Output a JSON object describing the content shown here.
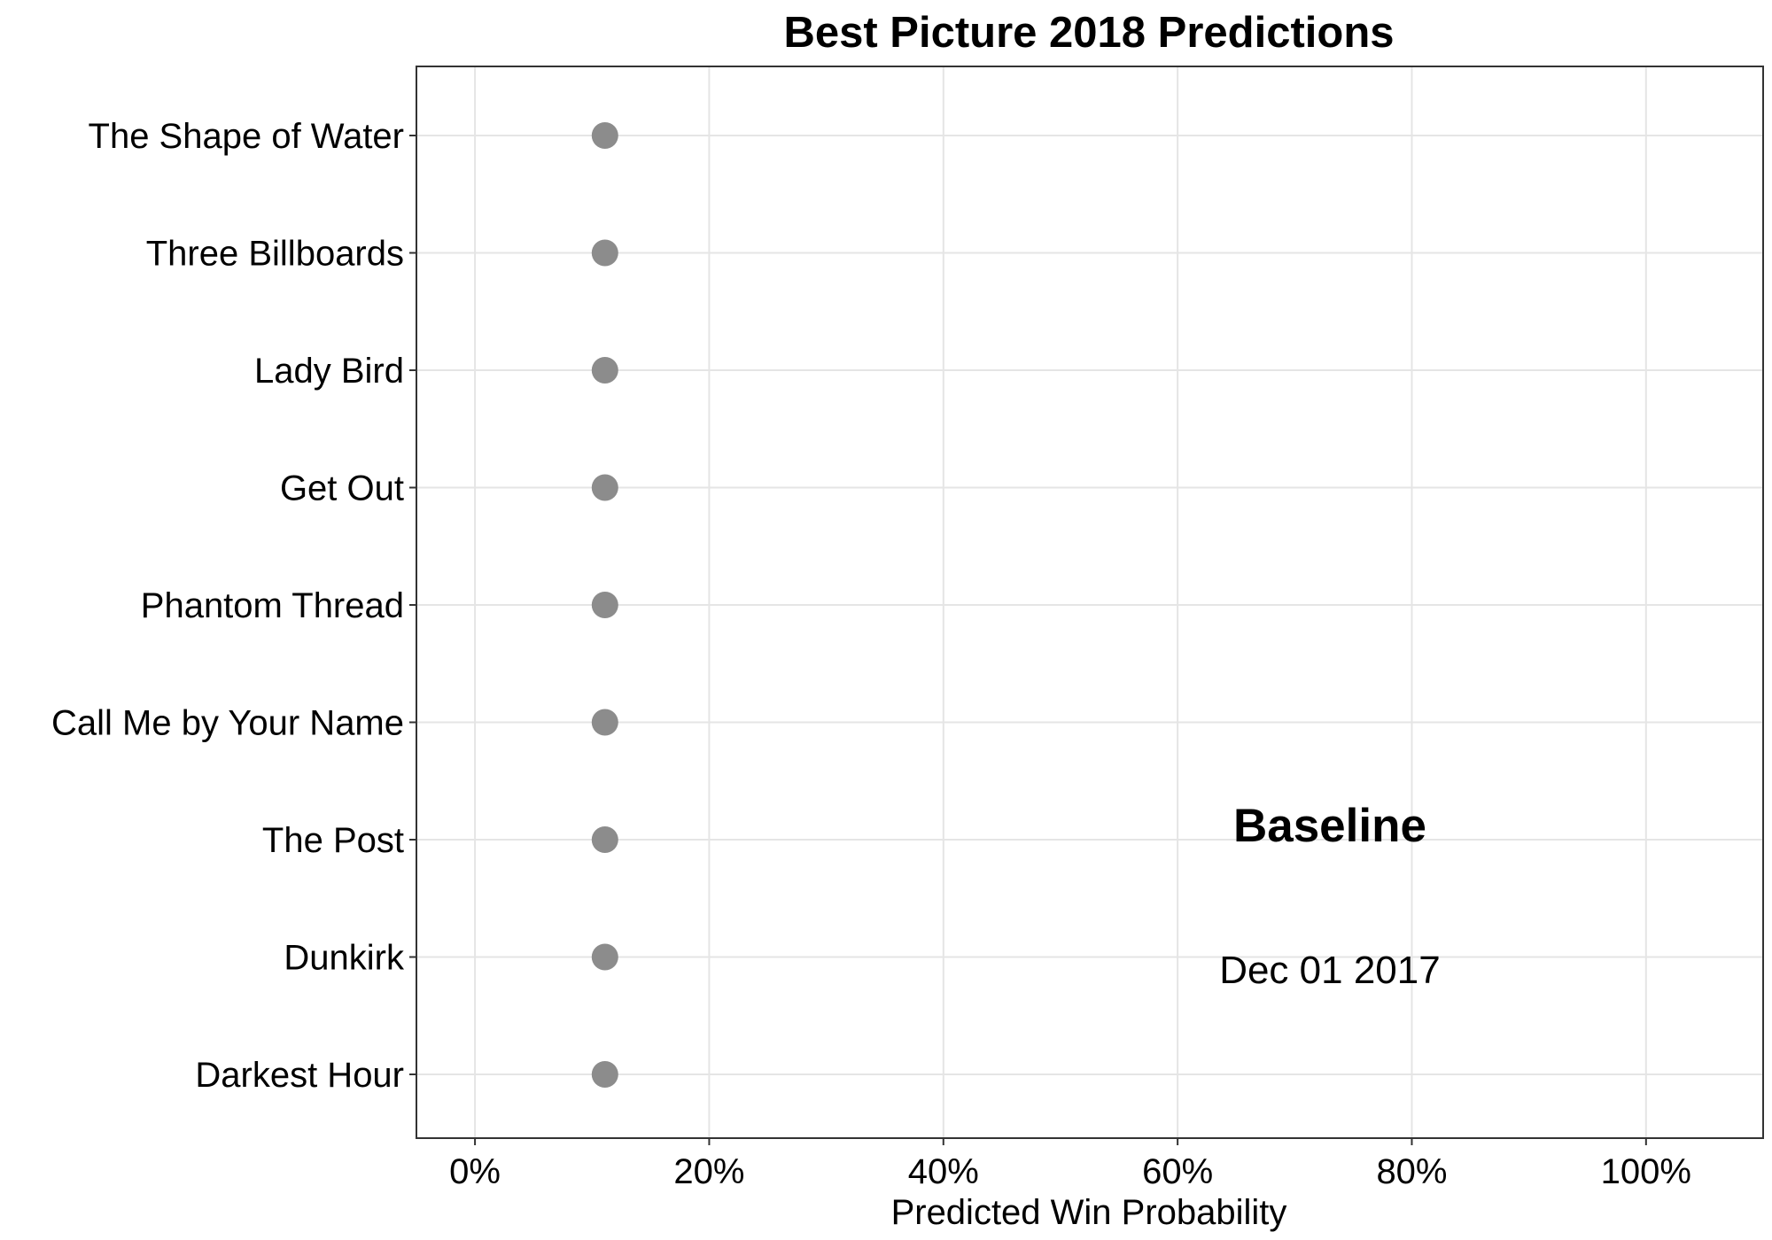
{
  "chart_data": {
    "type": "scatter",
    "title": "Best Picture 2018 Predictions",
    "xlabel": "Predicted Win Probability",
    "ylabel": "",
    "xlim": [
      -0.05,
      1.1
    ],
    "x_ticks": [
      0,
      0.2,
      0.4,
      0.6,
      0.8,
      1.0
    ],
    "x_tick_labels": [
      "0%",
      "20%",
      "40%",
      "60%",
      "80%",
      "100%"
    ],
    "categories": [
      "The Shape of Water",
      "Three Billboards",
      "Lady Bird",
      "Get Out",
      "Phantom Thread",
      "Call Me by Your Name",
      "The Post",
      "Dunkirk",
      "Darkest Hour"
    ],
    "values": [
      0.111,
      0.111,
      0.111,
      0.111,
      0.111,
      0.111,
      0.111,
      0.111,
      0.111
    ],
    "point_color": "#8c8c8c",
    "grid": true,
    "annotations": [
      {
        "text": "Baseline",
        "x": 0.73,
        "bold": true
      },
      {
        "text": "Dec 01 2017",
        "x": 0.73,
        "bold": false
      }
    ]
  }
}
